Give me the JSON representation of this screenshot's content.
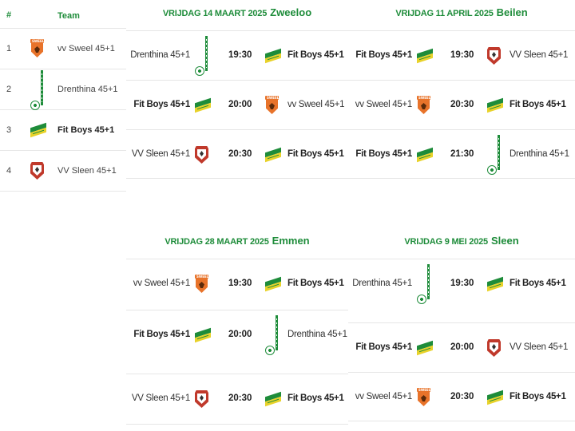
{
  "standings": {
    "header": {
      "pos": "#",
      "team": "Team"
    },
    "rows": [
      {
        "pos": "1",
        "team": "vv Sweel 45+1",
        "logo": "sweel-logo",
        "bold": false
      },
      {
        "pos": "2",
        "team": "Drenthina 45+1",
        "logo": "drenthina-logo",
        "bold": false
      },
      {
        "pos": "3",
        "team": "Fit Boys 45+1",
        "logo": "fitboys-logo",
        "bold": true
      },
      {
        "pos": "4",
        "team": "VV Sleen 45+1",
        "logo": "sleen-logo",
        "bold": false
      }
    ]
  },
  "rounds": [
    {
      "date": "VRIJDAG 14 MAART 2025",
      "location": "Zweeloo",
      "matches": [
        {
          "home": "Drenthina 45+1",
          "home_logo": "drenthina-logo",
          "time": "19:30",
          "away": "Fit Boys 45+1",
          "away_logo": "fitboys-logo"
        },
        {
          "home": "Fit Boys 45+1",
          "home_logo": "fitboys-logo",
          "time": "20:00",
          "away": "vv Sweel 45+1",
          "away_logo": "sweel-logo"
        },
        {
          "home": "VV Sleen 45+1",
          "home_logo": "sleen-logo",
          "time": "20:30",
          "away": "Fit Boys 45+1",
          "away_logo": "fitboys-logo"
        }
      ]
    },
    {
      "date": "VRIJDAG 11 APRIL 2025",
      "location": "Beilen",
      "matches": [
        {
          "home": "Fit Boys 45+1",
          "home_logo": "fitboys-logo",
          "time": "19:30",
          "away": "VV Sleen 45+1",
          "away_logo": "sleen-logo"
        },
        {
          "home": "vv Sweel 45+1",
          "home_logo": "sweel-logo",
          "time": "20:30",
          "away": "Fit Boys 45+1",
          "away_logo": "fitboys-logo"
        },
        {
          "home": "Fit Boys 45+1",
          "home_logo": "fitboys-logo",
          "time": "21:30",
          "away": "Drenthina 45+1",
          "away_logo": "drenthina-logo"
        }
      ]
    },
    {
      "date": "VRIJDAG 28 MAART 2025",
      "location": "Emmen",
      "matches": [
        {
          "home": "vv Sweel 45+1",
          "home_logo": "sweel-logo",
          "time": "19:30",
          "away": "Fit Boys 45+1",
          "away_logo": "fitboys-logo"
        },
        {
          "home": "Fit Boys 45+1",
          "home_logo": "fitboys-logo",
          "time": "20:00",
          "away": "Drenthina 45+1",
          "away_logo": "drenthina-logo"
        },
        {
          "home": "VV Sleen 45+1",
          "home_logo": "sleen-logo",
          "time": "20:30",
          "away": "Fit Boys 45+1",
          "away_logo": "fitboys-logo"
        }
      ]
    },
    {
      "date": "VRIJDAG 9 MEI 2025",
      "location": "Sleen",
      "matches": [
        {
          "home": "Drenthina 45+1",
          "home_logo": "drenthina-logo",
          "time": "19:30",
          "away": "Fit Boys 45+1",
          "away_logo": "fitboys-logo"
        },
        {
          "home": "Fit Boys 45+1",
          "home_logo": "fitboys-logo",
          "time": "20:00",
          "away": "VV Sleen 45+1",
          "away_logo": "sleen-logo"
        },
        {
          "home": "vv Sweel 45+1",
          "home_logo": "sweel-logo",
          "time": "20:30",
          "away": "Fit Boys 45+1",
          "away_logo": "fitboys-logo"
        }
      ]
    }
  ],
  "colors": {
    "accent": "#1e8c3a",
    "divider": "#e6e6e6"
  }
}
